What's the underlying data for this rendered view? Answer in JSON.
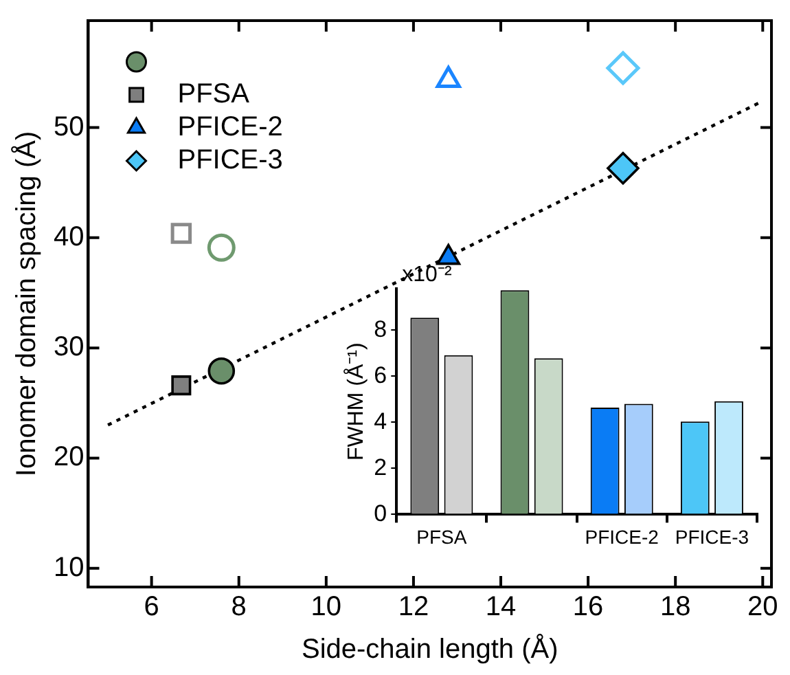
{
  "chart_data": [
    {
      "type": "scatter",
      "xlabel": "Side-chain length (Å)",
      "ylabel": "Ionomer domain spacing (Å)",
      "xlim": [
        4.55,
        20.2
      ],
      "xticks": [
        6,
        8,
        10,
        12,
        14,
        16,
        18,
        20
      ],
      "ylim": [
        8.3,
        59.7
      ],
      "yticks": [
        10,
        20,
        30,
        40,
        50
      ],
      "grid": false,
      "legend": "top left",
      "series": [
        {
          "name": null,
          "marker": "circle",
          "color": "#6a8f6a",
          "x": [
            7.6
          ],
          "values": [
            27.9
          ]
        },
        {
          "name": "PFSA",
          "marker": "square",
          "color": "#7f7f7f",
          "x": [
            6.68
          ],
          "values": [
            26.6
          ]
        },
        {
          "name": "PFICE-2",
          "marker": "triangle",
          "color": "#0a7cf5",
          "x": [
            12.8
          ],
          "values": [
            38.2
          ]
        },
        {
          "name": "PFICE-3",
          "marker": "diamond",
          "color": "#4dc6f7",
          "x": [
            16.8
          ],
          "values": [
            46.3
          ]
        },
        {
          "marker": "circle",
          "color": "#6f9a6f",
          "x": [
            7.6
          ],
          "values": [
            39.1
          ]
        },
        {
          "marker": "square",
          "color": "#8a8a8a",
          "x": [
            6.68
          ],
          "values": [
            40.4
          ]
        },
        {
          "marker": "triangle",
          "color": "#1a85ff",
          "x": [
            12.8
          ],
          "values": [
            54.3
          ]
        },
        {
          "marker": "diamond",
          "color": "#5ac8fa",
          "x": [
            16.8
          ],
          "values": [
            55.4
          ]
        },
        {
          "type": "line",
          "marker": "none",
          "line_style": "dotted",
          "color": "#000000",
          "x": [
            5.0,
            20.0
          ],
          "values": [
            23.0,
            52.4
          ]
        }
      ]
    },
    {
      "type": "bar",
      "ylabel": "FWHM (Å⁻¹)",
      "categories": [
        "PFSA",
        null,
        "PFICE-2",
        "PFICE-3"
      ],
      "ylim": [
        0,
        9.8
      ],
      "yticks": [
        0,
        2,
        4,
        6,
        8
      ],
      "grid": false,
      "annotations": [
        "x10⁻²"
      ],
      "series": [
        {
          "colors": [
            "#7f7f7f",
            "#6a8f6a",
            "#0a7cf5",
            "#4dc6f7"
          ],
          "values": [
            8.54,
            9.73,
            4.64,
            4.03
          ]
        },
        {
          "colors": [
            "#d2d2d2",
            "#c8d9c8",
            "#a6cdfb",
            "#bde9fc"
          ],
          "values": [
            6.91,
            6.78,
            4.8,
            4.91
          ]
        }
      ]
    }
  ]
}
